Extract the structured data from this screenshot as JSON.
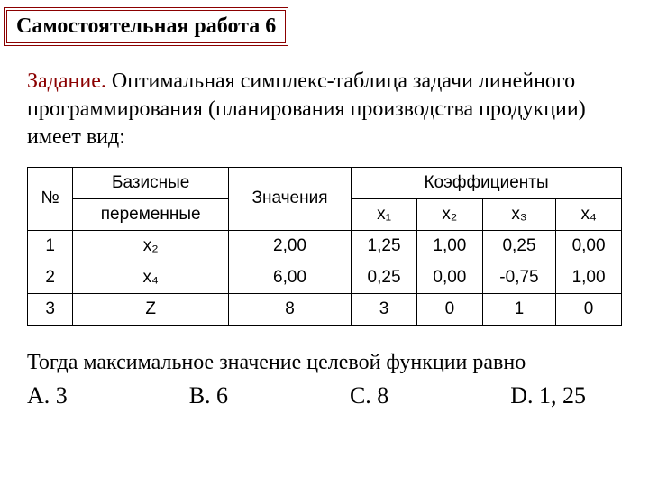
{
  "header": "Самостоятельная работа 6",
  "task_label": "Задание.",
  "task_body": " Оптимальная симплекс-таблица задачи линейного программирования (планирования производства продукции) имеет вид:",
  "table": {
    "head_num": "№",
    "head_basis_top": "Базисные",
    "head_basis_bottom": "переменные",
    "head_values": "Значения",
    "head_coef": "Коэффициенты",
    "x1": "x₁",
    "x2": "x₂",
    "x3": "x₃",
    "x4": "x₄",
    "rows": [
      {
        "n": "1",
        "b": "x₂",
        "v": "2,00",
        "c1": "1,25",
        "c2": "1,00",
        "c3": "0,25",
        "c4": "0,00"
      },
      {
        "n": "2",
        "b": "x₄",
        "v": "6,00",
        "c1": "0,25",
        "c2": "0,00",
        "c3": "-0,75",
        "c4": "1,00"
      },
      {
        "n": "3",
        "b": "Z",
        "v": "8",
        "c1": "3",
        "c2": "0",
        "c3": "1",
        "c4": "0"
      }
    ]
  },
  "question": "Тогда максимальное значение целевой функции равно",
  "answers": {
    "a": "A. 3",
    "b": "B. 6",
    "c": "C. 8",
    "d": "D. 1, 25"
  }
}
